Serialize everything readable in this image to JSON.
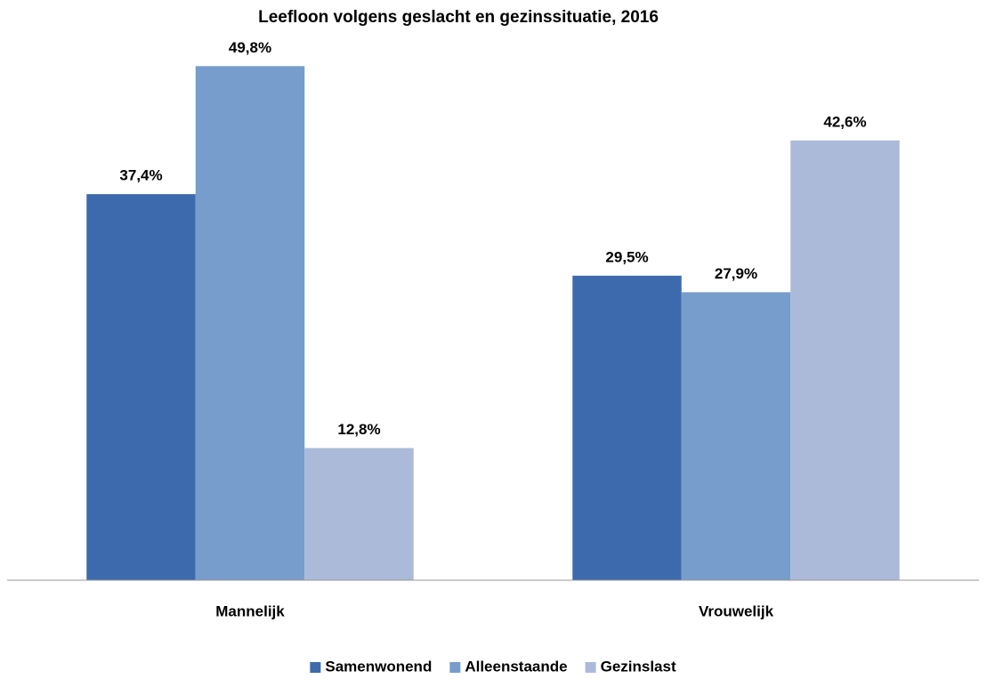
{
  "chart_data": {
    "type": "bar",
    "title": "Leefloon volgens geslacht en gezinssituatie, 2016",
    "categories": [
      "Mannelijk",
      "Vrouwelijk"
    ],
    "series": [
      {
        "name": "Samenwonend",
        "color": "#3d6aad",
        "values": [
          37.4,
          29.5
        ],
        "value_labels": [
          "37,4%",
          "29,5%"
        ]
      },
      {
        "name": "Alleenstaande",
        "color": "#769dcc",
        "values": [
          49.8,
          27.9
        ],
        "value_labels": [
          "49,8%",
          "27,9%"
        ]
      },
      {
        "name": "Gezinslast",
        "color": "#abbad8",
        "values": [
          12.8,
          42.6
        ],
        "value_labels": [
          "12,8%",
          "42,6%"
        ]
      }
    ],
    "ylim": [
      0,
      50
    ],
    "legend": "bottom"
  }
}
